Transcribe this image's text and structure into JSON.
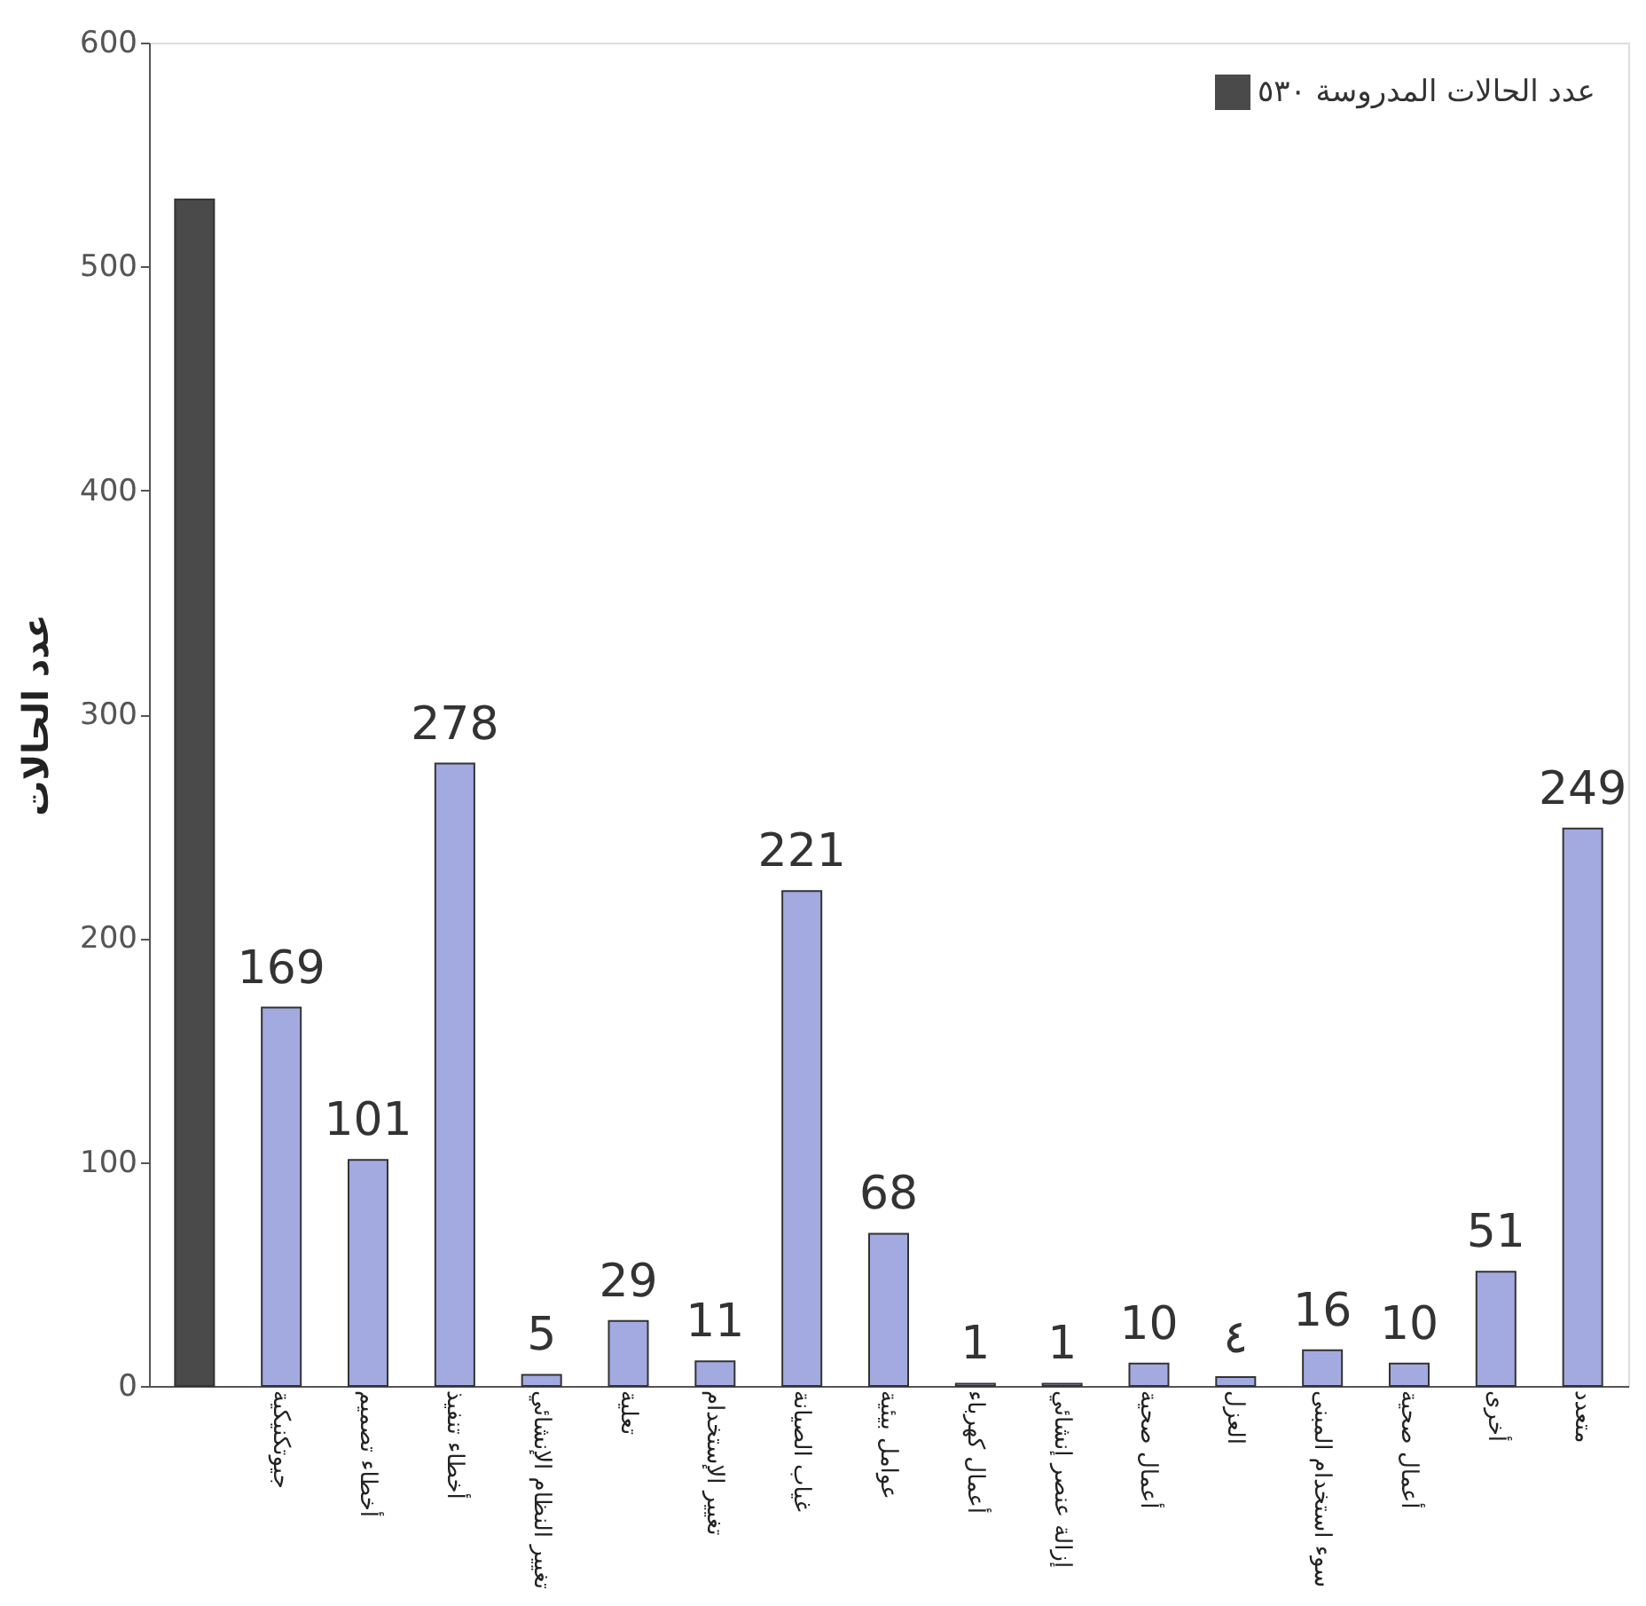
{
  "chart_data": {
    "type": "bar",
    "ylabel": "عدد الحالات",
    "categories": [
      null,
      "جيوتكنيكية",
      "أخطاء تصميم",
      "أخطاء تنفيذ",
      "تغيير النظام الإنشائي",
      "تعلية",
      "تغيير الإستخدام",
      "غياب الصيانة",
      "عوامل بيئية",
      "أعمال كهرباء",
      "إزالة عنصر إنشائي",
      "أعمال صحية",
      "العزل",
      "سوء استخدام المبنى",
      "أعمال صحية",
      "أخرى",
      "متعدد"
    ],
    "series": [
      {
        "name": "عدد الحالات المدروسة ٥٣٠",
        "color": "#4a4a4a",
        "values": [
          530,
          null,
          null,
          null,
          null,
          null,
          null,
          null,
          null,
          null,
          null,
          null,
          null,
          null,
          null,
          null,
          null
        ]
      },
      {
        "color": "#a3aae0",
        "values": [
          null,
          169,
          101,
          278,
          5,
          29,
          11,
          221,
          68,
          1,
          1,
          10,
          4,
          16,
          10,
          51,
          249
        ],
        "value_labels": [
          null,
          "169",
          "101",
          "278",
          "5",
          "29",
          "11",
          "221",
          "68",
          "1",
          "1",
          "10",
          "٤",
          "16",
          "10",
          "51",
          "249"
        ]
      }
    ],
    "ylim": [
      0,
      600
    ],
    "yticks": [
      0,
      100,
      200,
      300,
      400,
      500,
      600
    ],
    "grid": false,
    "legend": "top right"
  }
}
